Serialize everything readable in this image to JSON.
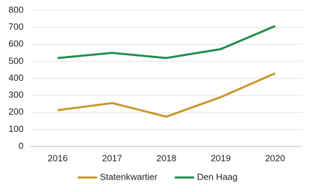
{
  "chart_data": {
    "type": "line",
    "categories": [
      "2016",
      "2017",
      "2018",
      "2019",
      "2020"
    ],
    "series": [
      {
        "name": "Statenkwartier",
        "color": "#c8962a",
        "values": [
          213,
          255,
          175,
          290,
          430
        ]
      },
      {
        "name": "Den Haag",
        "color": "#1e8c4a",
        "values": [
          520,
          550,
          520,
          572,
          708
        ]
      }
    ],
    "ylim": [
      0,
      800
    ],
    "yticks": [
      0,
      100,
      200,
      300,
      400,
      500,
      600,
      700,
      800
    ],
    "grid": true,
    "legend": "bottom"
  }
}
